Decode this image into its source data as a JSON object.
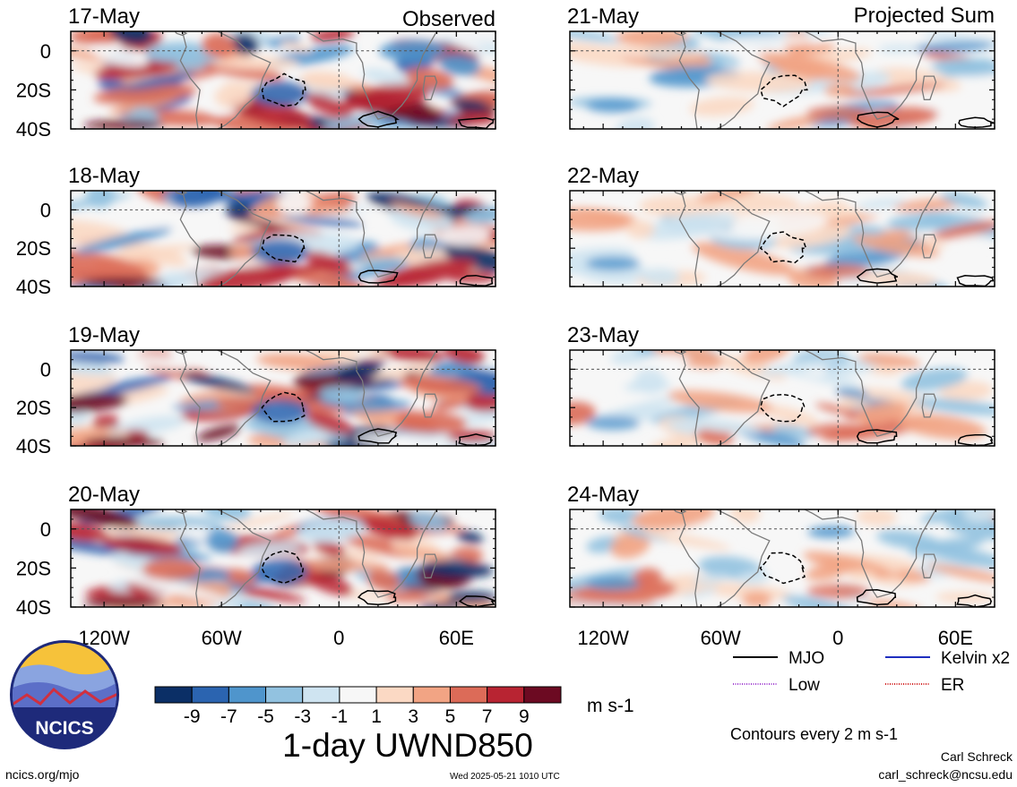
{
  "units_label": "m s-1",
  "main_title": "1-day UWND850",
  "contour_note": "Contours every 2 m s-1",
  "footer": {
    "url": "ncics.org/mjo",
    "timestamp": "Wed 2025-05-21 1010 UTC",
    "author": "Carl Schreck",
    "email": "carl_schreck@ncsu.edu"
  },
  "logo_text": "NCICS",
  "panel_headers": {
    "observed": "Observed",
    "projected": "Projected Sum"
  },
  "legend": [
    {
      "label": "MJO",
      "color": "#000000",
      "style": "solid"
    },
    {
      "label": "Kelvin x2",
      "color": "#1f2fbf",
      "style": "solid"
    },
    {
      "label": "Low",
      "color": "#a040d0",
      "style": "dotted"
    },
    {
      "label": "ER",
      "color": "#d02020",
      "style": "dotted"
    }
  ],
  "colors": {
    "negative": [
      "#0b2f66",
      "#2b64b0",
      "#4f95cc",
      "#92c2e0",
      "#cfe4f1"
    ],
    "neutral": "#f7f7f7",
    "positive": [
      "#fbd9c4",
      "#f2a484",
      "#dc6b58",
      "#b82432",
      "#6c0a22"
    ]
  },
  "chart_data": {
    "type": "heatmap",
    "variable": "1-day UWND850",
    "units": "m s-1",
    "colorbar": {
      "ticks": [
        -9,
        -7,
        -5,
        -3,
        -1,
        1,
        3,
        5,
        7,
        9
      ]
    },
    "x_axis": {
      "ticks": [
        -120,
        -60,
        0,
        60
      ],
      "tick_labels": [
        "120W",
        "60W",
        "0",
        "60E"
      ],
      "range": [
        -137,
        80
      ]
    },
    "y_axis": {
      "ticks": [
        0,
        -20,
        -40
      ],
      "tick_labels": [
        "0",
        "20S",
        "40S"
      ],
      "range": [
        -40,
        10
      ]
    },
    "panels": [
      {
        "date": "17-May",
        "column": "Observed"
      },
      {
        "date": "18-May",
        "column": "Observed"
      },
      {
        "date": "19-May",
        "column": "Observed"
      },
      {
        "date": "20-May",
        "column": "Observed"
      },
      {
        "date": "21-May",
        "column": "Projected Sum"
      },
      {
        "date": "22-May",
        "column": "Projected Sum"
      },
      {
        "date": "23-May",
        "column": "Projected Sum"
      },
      {
        "date": "24-May",
        "column": "Projected Sum"
      }
    ]
  }
}
